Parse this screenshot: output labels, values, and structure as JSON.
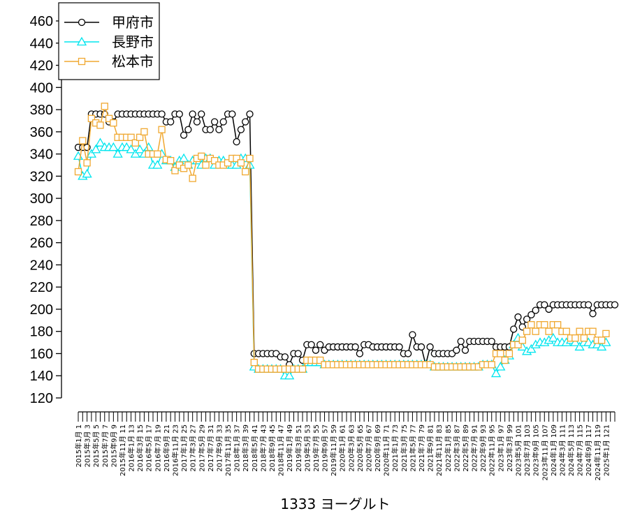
{
  "chart_data": {
    "type": "line",
    "title": "",
    "xlabel": "1333 ヨーグルト",
    "ylabel": "",
    "ylim": [
      120,
      460
    ],
    "yticks": [
      120,
      140,
      160,
      180,
      200,
      220,
      240,
      260,
      280,
      300,
      320,
      340,
      360,
      380,
      400,
      420,
      440,
      460
    ],
    "grid": false,
    "legend_position": "top-left",
    "x_label_prefix": [
      "2015年1月",
      "2015年3月",
      "2015年5月",
      "2015年7月",
      "2015年9月",
      "2015年11月",
      "2016年1月",
      "2016年3月",
      "2016年5月",
      "2016年7月",
      "2016年9月",
      "2016年11月",
      "2017年1月",
      "2017年3月",
      "2017年5月",
      "2017年7月",
      "2017年9月",
      "2017年11月",
      "2018年1月",
      "2018年3月",
      "2018年5月",
      "2018年7月",
      "2018年9月",
      "2018年11月",
      "2019年1月",
      "2019年3月",
      "2019年5月",
      "2019年7月",
      "2019年9月",
      "2019年11月",
      "2020年1月",
      "2020年3月",
      "2020年5月",
      "2020年7月",
      "2020年9月",
      "2020年11月",
      "2021年1月",
      "2021年3月",
      "2021年5月",
      "2021年7月",
      "2021年9月",
      "2021年11月",
      "2022年1月",
      "2022年3月",
      "2022年5月",
      "2022年7月",
      "2022年9月",
      "2022年11月",
      "2023年1月",
      "2023年3月",
      "2023年5月",
      "2023年7月",
      "2023年9月",
      "2023年11月",
      "2024年1月",
      "2024年3月",
      "2024年5月",
      "2024年7月",
      "2024年9月",
      "2024年11月",
      "2025年1月"
    ],
    "x_label_index": [
      1,
      3,
      5,
      7,
      9,
      11,
      13,
      15,
      17,
      19,
      21,
      23,
      25,
      27,
      29,
      31,
      33,
      35,
      37,
      39,
      41,
      43,
      45,
      47,
      49,
      51,
      53,
      55,
      57,
      59,
      61,
      63,
      65,
      67,
      69,
      71,
      73,
      75,
      77,
      79,
      81,
      83,
      85,
      87,
      89,
      91,
      93,
      95,
      97,
      99,
      101,
      103,
      105,
      107,
      109,
      111,
      113,
      115,
      117,
      119,
      121
    ],
    "series": [
      {
        "name": "甲府市",
        "color": "#000000",
        "marker": "circle",
        "values": [
          346,
          346,
          346,
          376,
          376,
          376,
          376,
          369,
          369,
          376,
          376,
          376,
          376,
          376,
          376,
          376,
          376,
          376,
          376,
          376,
          369,
          369,
          376,
          376,
          357,
          362,
          376,
          369,
          376,
          362,
          362,
          369,
          362,
          369,
          376,
          376,
          351,
          362,
          369,
          376,
          160,
          160,
          160,
          160,
          160,
          160,
          157,
          157,
          150,
          160,
          160,
          154,
          168,
          168,
          163,
          168,
          163,
          166,
          166,
          166,
          166,
          166,
          166,
          166,
          160,
          168,
          168,
          166,
          166,
          166,
          166,
          166,
          166,
          166,
          160,
          160,
          177,
          166,
          166,
          150,
          166,
          160,
          160,
          160,
          160,
          160,
          163,
          171,
          163,
          171,
          171,
          171,
          171,
          171,
          171,
          166,
          166,
          166,
          166,
          182,
          193,
          184,
          191,
          195,
          199,
          204,
          204,
          200,
          204,
          204,
          204,
          204,
          204,
          204,
          204,
          204,
          204,
          196,
          204,
          204,
          204,
          204,
          204
        ]
      },
      {
        "name": "長野市",
        "color": "#00e5ee",
        "marker": "triangle",
        "values": [
          338,
          320,
          322,
          340,
          344,
          350,
          346,
          346,
          346,
          340,
          346,
          346,
          344,
          340,
          344,
          340,
          346,
          330,
          330,
          340,
          334,
          334,
          328,
          334,
          336,
          330,
          334,
          334,
          330,
          336,
          336,
          330,
          334,
          334,
          330,
          330,
          330,
          336,
          336,
          330,
          148,
          146,
          146,
          146,
          146,
          146,
          146,
          140,
          140,
          146,
          146,
          146,
          152,
          152,
          152,
          152,
          150,
          150,
          150,
          150,
          150,
          150,
          150,
          150,
          150,
          150,
          150,
          150,
          150,
          150,
          150,
          150,
          150,
          150,
          150,
          150,
          150,
          150,
          150,
          150,
          150,
          148,
          148,
          148,
          148,
          148,
          148,
          148,
          148,
          148,
          148,
          148,
          150,
          150,
          150,
          142,
          148,
          154,
          158,
          168,
          174,
          166,
          162,
          164,
          168,
          170,
          170,
          172,
          174,
          170,
          170,
          170,
          172,
          170,
          166,
          170,
          170,
          168,
          168,
          166,
          170
        ]
      },
      {
        "name": "松本市",
        "color": "#f0a830",
        "marker": "square",
        "values": [
          324,
          352,
          332,
          372,
          368,
          366,
          383,
          372,
          368,
          355,
          355,
          355,
          355,
          350,
          355,
          360,
          340,
          340,
          340,
          362,
          335,
          334,
          325,
          330,
          327,
          330,
          318,
          336,
          338,
          330,
          336,
          334,
          330,
          330,
          332,
          336,
          336,
          332,
          324,
          336,
          152,
          146,
          146,
          146,
          146,
          146,
          146,
          146,
          146,
          146,
          146,
          146,
          154,
          154,
          154,
          154,
          150,
          150,
          150,
          150,
          150,
          150,
          150,
          150,
          150,
          150,
          150,
          150,
          150,
          150,
          150,
          150,
          150,
          150,
          150,
          150,
          150,
          150,
          150,
          150,
          150,
          148,
          148,
          148,
          148,
          148,
          148,
          148,
          148,
          148,
          148,
          148,
          150,
          150,
          150,
          160,
          160,
          154,
          160,
          168,
          168,
          172,
          180,
          186,
          180,
          186,
          186,
          180,
          186,
          186,
          180,
          180,
          174,
          174,
          180,
          174,
          180,
          180,
          172,
          172,
          178
        ]
      }
    ]
  }
}
